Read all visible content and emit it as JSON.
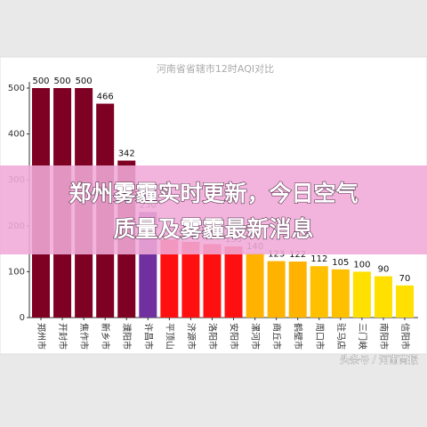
{
  "chart_data": {
    "type": "bar",
    "title": "河南省省辖市12时AQI对比",
    "categories": [
      "郑州市",
      "开封市",
      "焦作市",
      "新乡市",
      "濮阳市",
      "许昌市",
      "平顶山",
      "济源市",
      "洛阳市",
      "安阳市",
      "漯河市",
      "商丘市",
      "鹤壁市",
      "周口市",
      "驻马店",
      "三门峡",
      "南阳市",
      "信阳市"
    ],
    "values": [
      500,
      500,
      500,
      466,
      342,
      230,
      170,
      165,
      160,
      155,
      140,
      123,
      122,
      112,
      105,
      100,
      90,
      70
    ],
    "colors": [
      "#7e0023",
      "#7e0023",
      "#7e0023",
      "#7e0023",
      "#7e0023",
      "#7030a0",
      "#ff1010",
      "#ff1010",
      "#ff1010",
      "#ff1010",
      "#ffb300",
      "#ffb300",
      "#ffb300",
      "#ffc000",
      "#ffc000",
      "#ffe000",
      "#ffe000",
      "#ffe000"
    ],
    "ylim": [
      0,
      500
    ],
    "yticks": [
      0,
      100,
      200,
      300,
      400,
      500
    ],
    "grid": false
  },
  "banner": {
    "lines": [
      "郑州雾霾实时更新，今日空气",
      "质量及雾霾最新消息"
    ]
  },
  "watermark": "头条号 / 河南商报"
}
